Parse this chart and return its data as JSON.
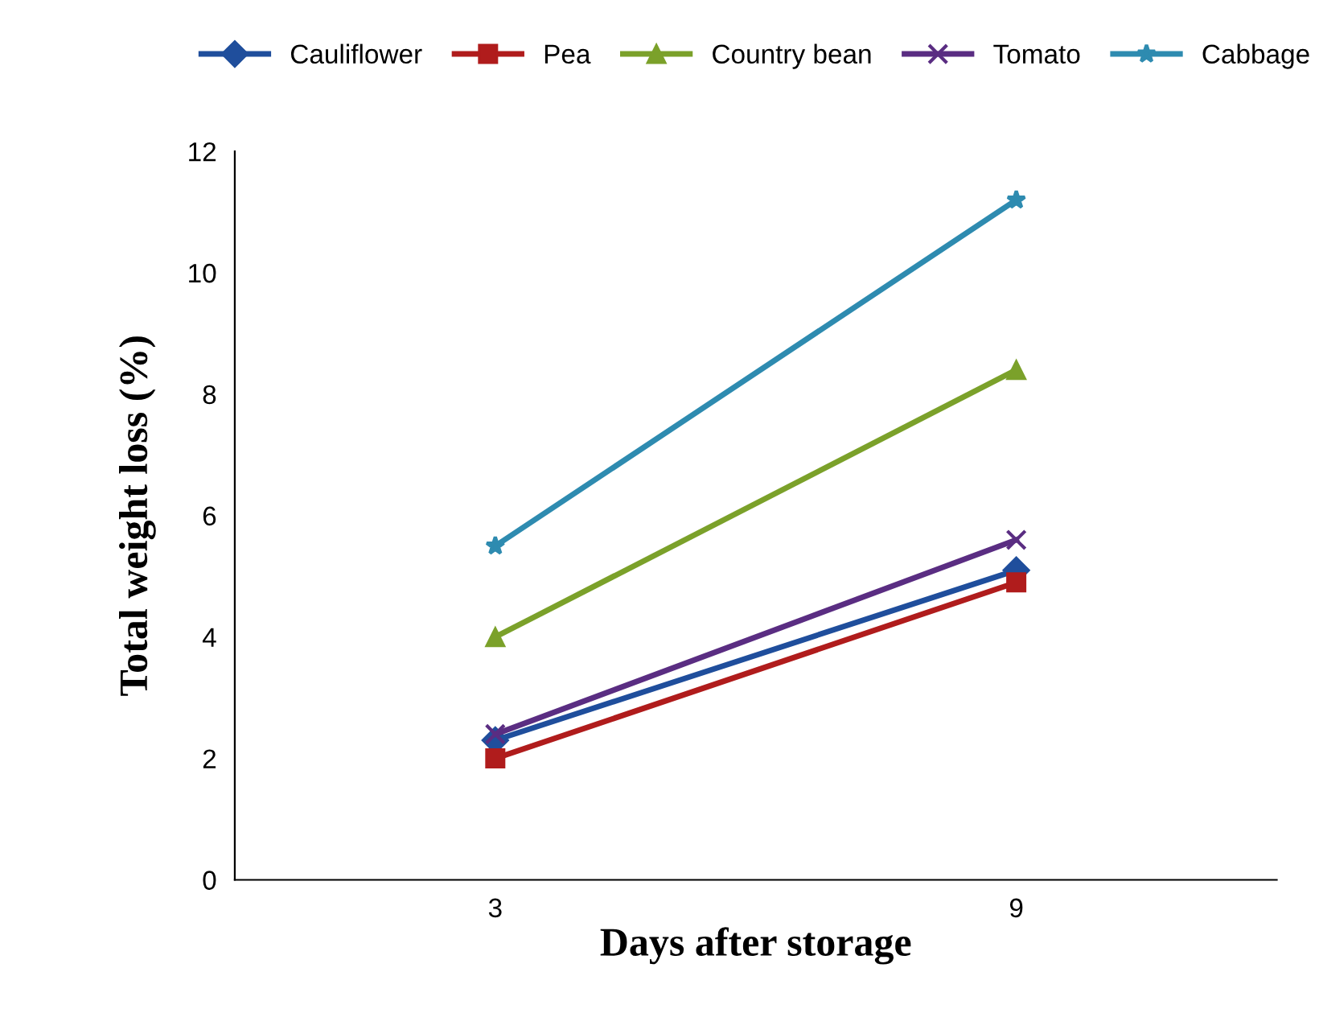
{
  "chart_data": {
    "type": "line",
    "xlabel": "Days after storage",
    "ylabel": "Total weight loss (%)",
    "categories": [
      "3",
      "9"
    ],
    "series": [
      {
        "name": "Cauliflower",
        "color": "#1f4e9c",
        "marker": "diamond",
        "values": [
          2.3,
          5.1
        ]
      },
      {
        "name": "Pea",
        "color": "#b01c1c",
        "marker": "square",
        "values": [
          2.0,
          4.9
        ]
      },
      {
        "name": "Country bean",
        "color": "#7ba12a",
        "marker": "triangle",
        "values": [
          4.0,
          8.4
        ]
      },
      {
        "name": "Tomato",
        "color": "#5a2d82",
        "marker": "cross",
        "values": [
          2.4,
          5.6
        ]
      },
      {
        "name": "Cabbage",
        "color": "#2e8bb0",
        "marker": "star",
        "values": [
          5.5,
          11.2
        ]
      }
    ],
    "ylim": [
      0,
      12
    ],
    "yticks": [
      0,
      2,
      4,
      6,
      8,
      10,
      12
    ],
    "grid": false,
    "legend": "top",
    "line_style": "solid"
  }
}
